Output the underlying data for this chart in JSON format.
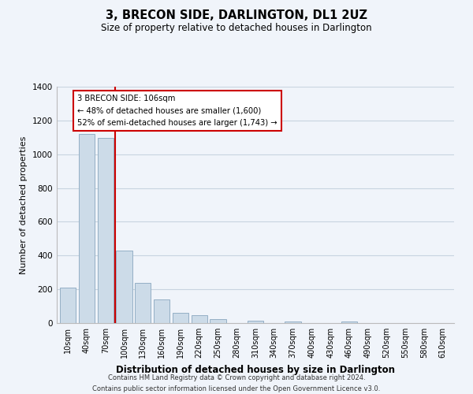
{
  "title": "3, BRECON SIDE, DARLINGTON, DL1 2UZ",
  "subtitle": "Size of property relative to detached houses in Darlington",
  "xlabel": "Distribution of detached houses by size in Darlington",
  "ylabel": "Number of detached properties",
  "bar_labels": [
    "10sqm",
    "40sqm",
    "70sqm",
    "100sqm",
    "130sqm",
    "160sqm",
    "190sqm",
    "220sqm",
    "250sqm",
    "280sqm",
    "310sqm",
    "340sqm",
    "370sqm",
    "400sqm",
    "430sqm",
    "460sqm",
    "490sqm",
    "520sqm",
    "550sqm",
    "580sqm",
    "610sqm"
  ],
  "bar_values": [
    210,
    1120,
    1095,
    430,
    240,
    140,
    60,
    47,
    22,
    0,
    15,
    0,
    10,
    0,
    0,
    8,
    0,
    0,
    0,
    0,
    0
  ],
  "bar_color": "#ccdbe8",
  "bar_edge_color": "#94afc5",
  "vline_color": "#cc0000",
  "annotation_title": "3 BRECON SIDE: 106sqm",
  "annotation_line1": "← 48% of detached houses are smaller (1,600)",
  "annotation_line2": "52% of semi-detached houses are larger (1,743) →",
  "annotation_box_color": "#ffffff",
  "annotation_box_edge": "#cc0000",
  "ylim": [
    0,
    1400
  ],
  "yticks": [
    0,
    200,
    400,
    600,
    800,
    1000,
    1200,
    1400
  ],
  "footer_line1": "Contains HM Land Registry data © Crown copyright and database right 2024.",
  "footer_line2": "Contains public sector information licensed under the Open Government Licence v3.0.",
  "background_color": "#f0f4fa",
  "grid_color": "#c8d4e0"
}
